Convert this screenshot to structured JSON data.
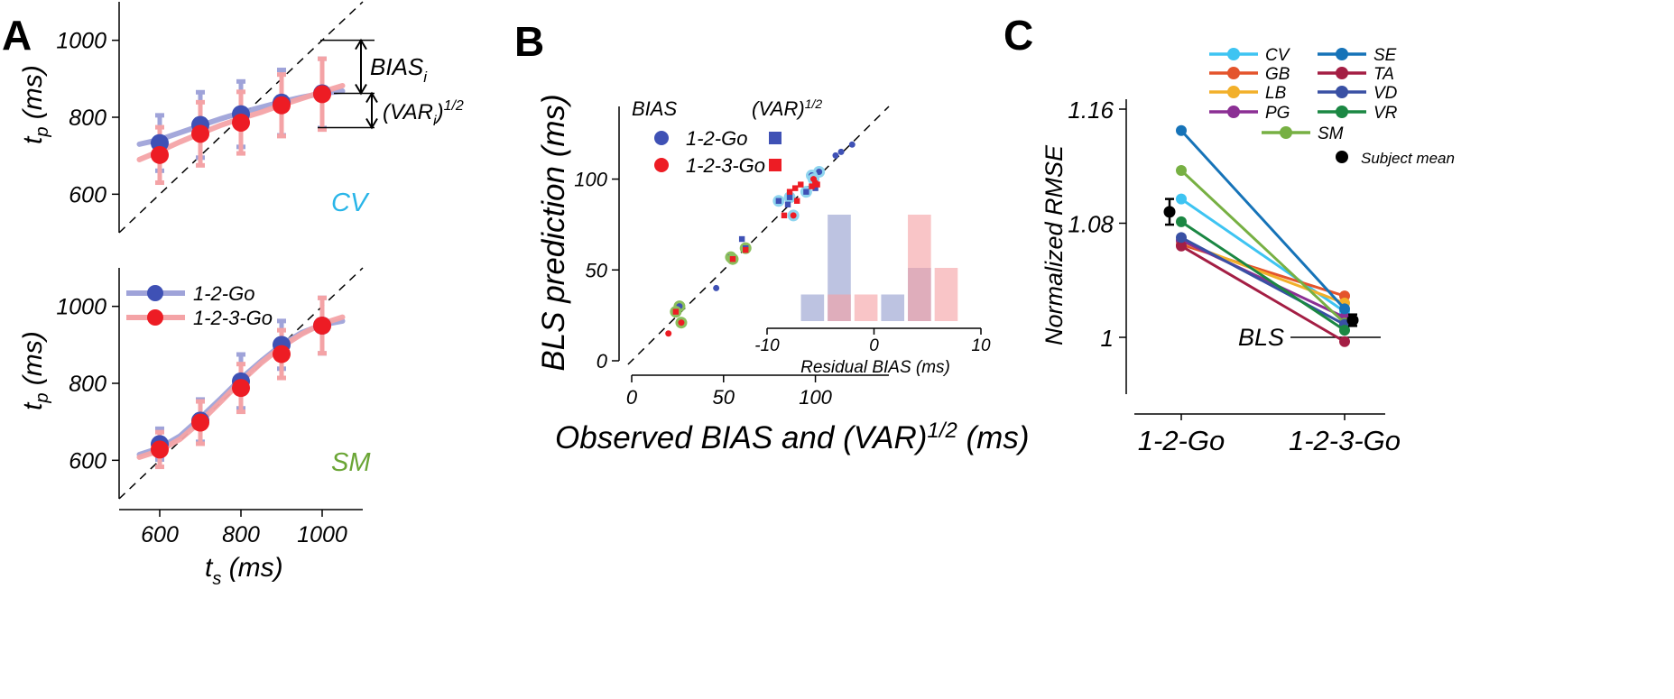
{
  "colors": {
    "go12": "#3f51b5",
    "go123": "#ed1c24",
    "go12_light": "#9fa3d9",
    "go123_light": "#f4a3a6",
    "cv_label": "#29b5e8",
    "sm_label": "#6aa535"
  },
  "chart_data": [
    {
      "panel_letter": "A",
      "type": "line",
      "subject_label": "CV",
      "xlabel_main": "t",
      "xlabel_sub": "s",
      "xlabel_unit": " (ms)",
      "ylabel_main": "t",
      "ylabel_sub": "p",
      "ylabel_unit": " (ms)",
      "xlim": [
        500,
        1100
      ],
      "ylim": [
        500,
        1100
      ],
      "xticks": [
        600,
        800,
        1000
      ],
      "yticks": [
        600,
        800,
        1000
      ],
      "x": [
        600,
        700,
        800,
        900,
        1000
      ],
      "series": [
        {
          "key": "go12",
          "values": [
            733,
            780,
            808,
            838,
            862
          ],
          "err": [
            72,
            85,
            85,
            85,
            90
          ],
          "curve_x": [
            550,
            600,
            650,
            700,
            750,
            800,
            850,
            900,
            950,
            1000,
            1050
          ],
          "curve_y": [
            730,
            742,
            760,
            778,
            796,
            812,
            826,
            840,
            852,
            862,
            868
          ]
        },
        {
          "key": "go123",
          "values": [
            702,
            757,
            786,
            831,
            860
          ],
          "err": [
            72,
            82,
            80,
            80,
            92
          ],
          "curve_x": [
            550,
            600,
            650,
            700,
            750,
            800,
            850,
            900,
            950,
            1000,
            1050
          ],
          "curve_y": [
            690,
            712,
            736,
            758,
            779,
            797,
            813,
            832,
            849,
            866,
            882
          ]
        }
      ],
      "annotations": {
        "bias": "BIAS",
        "bias_sub": "i",
        "var": "(VAR",
        "var_sub": "i",
        "var_tail": ")",
        "var_sup": "1/2"
      }
    },
    {
      "type": "line",
      "subject_label": "SM",
      "xlabel_main": "t",
      "xlabel_sub": "s",
      "xlabel_unit": " (ms)",
      "ylabel_main": "t",
      "ylabel_sub": "p",
      "ylabel_unit": " (ms)",
      "xlim": [
        500,
        1100
      ],
      "ylim": [
        500,
        1100
      ],
      "xticks": [
        600,
        800,
        1000
      ],
      "yticks": [
        600,
        800,
        1000
      ],
      "x": [
        600,
        700,
        800,
        900,
        1000
      ],
      "legend": [
        "1-2-Go",
        "1-2-3-Go"
      ],
      "series": [
        {
          "key": "go12",
          "values": [
            642,
            703,
            805,
            900,
            950
          ],
          "err": [
            40,
            55,
            70,
            62,
            72
          ],
          "curve_x": [
            550,
            600,
            650,
            700,
            750,
            800,
            850,
            900,
            950,
            1000,
            1050
          ],
          "curve_y": [
            615,
            632,
            663,
            710,
            760,
            812,
            858,
            900,
            932,
            952,
            962
          ]
        },
        {
          "key": "go123",
          "values": [
            628,
            698,
            788,
            876,
            950
          ],
          "err": [
            45,
            55,
            62,
            62,
            72
          ],
          "curve_x": [
            550,
            600,
            650,
            700,
            750,
            800,
            850,
            900,
            950,
            1000,
            1050
          ],
          "curve_y": [
            608,
            625,
            655,
            700,
            752,
            805,
            853,
            895,
            928,
            955,
            972
          ]
        }
      ]
    },
    {
      "panel_letter": "B",
      "type": "scatter",
      "xlabel": "Observed BIAS and (VAR)",
      "xlabel_sup": "1/2",
      "xlabel_unit": " (ms)",
      "ylabel": "BLS prediction (ms)",
      "xlim": [
        0,
        140
      ],
      "ylim": [
        0,
        140
      ],
      "xticks": [
        0,
        50,
        100
      ],
      "yticks": [
        0,
        50,
        100
      ],
      "legend": {
        "bias_header": "BIAS",
        "var_header": "(VAR)",
        "var_header_sup": "1/2",
        "entries": [
          "1-2-Go",
          "1-2-3-Go"
        ]
      },
      "points": [
        {
          "x": 120,
          "y": 119,
          "s": "go12",
          "m": "c"
        },
        {
          "x": 114,
          "y": 115,
          "s": "go12",
          "m": "c"
        },
        {
          "x": 111,
          "y": 113,
          "s": "go12",
          "m": "c"
        },
        {
          "x": 102,
          "y": 104,
          "s": "go12",
          "m": "c",
          "ring": "cv"
        },
        {
          "x": 98,
          "y": 102,
          "s": "go12",
          "m": "c",
          "ring": "cv"
        },
        {
          "x": 46,
          "y": 40,
          "s": "go12",
          "m": "c"
        },
        {
          "x": 100,
          "y": 95,
          "s": "go12",
          "m": "q"
        },
        {
          "x": 86,
          "y": 90,
          "s": "go12",
          "m": "q",
          "ring": "cv"
        },
        {
          "x": 80,
          "y": 88,
          "s": "go12",
          "m": "q",
          "ring": "cv"
        },
        {
          "x": 85,
          "y": 86,
          "s": "go12",
          "m": "q"
        },
        {
          "x": 88,
          "y": 80,
          "s": "go12",
          "m": "q"
        },
        {
          "x": 95,
          "y": 93,
          "s": "go12",
          "m": "q",
          "ring": "cv"
        },
        {
          "x": 60,
          "y": 67,
          "s": "go12",
          "m": "q"
        },
        {
          "x": 62,
          "y": 62,
          "s": "go12",
          "m": "q",
          "ring": "sm"
        },
        {
          "x": 54,
          "y": 57,
          "s": "go12",
          "m": "q",
          "ring": "sm"
        },
        {
          "x": 26,
          "y": 30,
          "s": "go12",
          "m": "c",
          "ring": "sm"
        },
        {
          "x": 99,
          "y": 100,
          "s": "go123",
          "m": "c",
          "ring": "cv"
        },
        {
          "x": 100,
          "y": 98,
          "s": "go123",
          "m": "c"
        },
        {
          "x": 88,
          "y": 80,
          "s": "go123",
          "m": "c",
          "ring": "cv"
        },
        {
          "x": 20,
          "y": 15,
          "s": "go123",
          "m": "c"
        },
        {
          "x": 27,
          "y": 21,
          "s": "go123",
          "m": "c",
          "ring": "sm"
        },
        {
          "x": 89,
          "y": 95,
          "s": "go123",
          "m": "q"
        },
        {
          "x": 92,
          "y": 97,
          "s": "go123",
          "m": "q"
        },
        {
          "x": 86,
          "y": 93,
          "s": "go123",
          "m": "q"
        },
        {
          "x": 83,
          "y": 80,
          "s": "go123",
          "m": "q"
        },
        {
          "x": 90,
          "y": 88,
          "s": "go123",
          "m": "q"
        },
        {
          "x": 98,
          "y": 96,
          "s": "go123",
          "m": "q"
        },
        {
          "x": 101,
          "y": 97,
          "s": "go123",
          "m": "q"
        },
        {
          "x": 24,
          "y": 27,
          "s": "go123",
          "m": "q",
          "ring": "sm"
        },
        {
          "x": 55,
          "y": 56,
          "s": "go123",
          "m": "q",
          "ring": "sm"
        },
        {
          "x": 62,
          "y": 61,
          "s": "go123",
          "m": "q"
        }
      ],
      "inset": {
        "type": "bar",
        "xlabel": "Residual BIAS (ms)",
        "xlim": [
          -10,
          10
        ],
        "xticks": [
          -10,
          0,
          10
        ],
        "bin_edges": [
          -7,
          -4.5,
          -2,
          0.5,
          3,
          5.5,
          8
        ],
        "go12_counts": [
          1,
          4,
          0,
          1,
          2,
          0
        ],
        "go123_counts": [
          0,
          1,
          1,
          0,
          4,
          2
        ]
      }
    },
    {
      "panel_letter": "C",
      "type": "line",
      "ylabel": "Normalized RMSE",
      "categories": [
        "1-2-Go",
        "1-2-3-Go"
      ],
      "ylim": [
        0.96,
        1.18
      ],
      "yticks": [
        "1",
        "1.08",
        "1.16"
      ],
      "ytick_values": [
        1.0,
        1.08,
        1.16
      ],
      "bls_label": "BLS",
      "bls_value": 1.0,
      "series": [
        {
          "name": "CV",
          "color": "#3ec4f2",
          "values": [
            1.097,
            1.018
          ]
        },
        {
          "name": "GB",
          "color": "#e4542c",
          "values": [
            1.065,
            1.029
          ]
        },
        {
          "name": "LB",
          "color": "#f2b02a",
          "values": [
            1.067,
            1.024
          ]
        },
        {
          "name": "PG",
          "color": "#8b2f94",
          "values": [
            1.068,
            1.014
          ]
        },
        {
          "name": "SM",
          "color": "#77b043",
          "values": [
            1.117,
            1.01
          ]
        },
        {
          "name": "SE",
          "color": "#1673b8",
          "values": [
            1.145,
            1.02
          ]
        },
        {
          "name": "TA",
          "color": "#a41e44",
          "values": [
            1.064,
            0.997
          ]
        },
        {
          "name": "VD",
          "color": "#3950a4",
          "values": [
            1.07,
            1.009
          ]
        },
        {
          "name": "VR",
          "color": "#1b8743",
          "values": [
            1.081,
            1.005
          ]
        }
      ],
      "subject_mean": {
        "label": "Subject mean",
        "values": [
          1.088,
          1.012
        ],
        "err": [
          0.009,
          0.004
        ]
      }
    }
  ]
}
